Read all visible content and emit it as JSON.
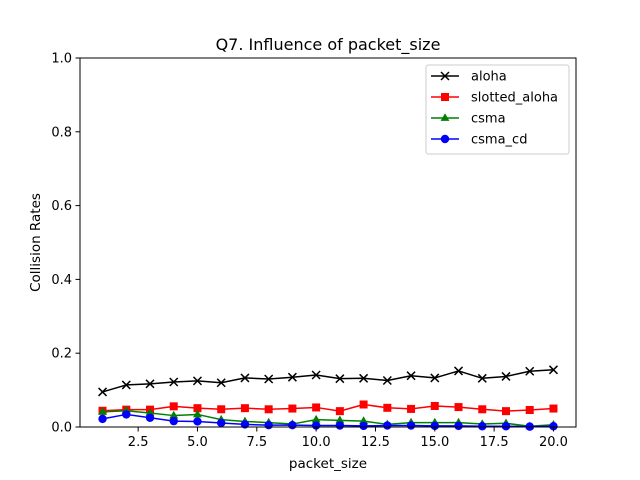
{
  "chart_data": {
    "type": "line",
    "title": "Q7. Influence of packet_size",
    "xlabel": "packet_size",
    "ylabel": "Collision Rates",
    "xlim": [
      0.05,
      20.95
    ],
    "ylim": [
      0.0,
      1.0
    ],
    "x_ticks": [
      2.5,
      5.0,
      7.5,
      10.0,
      12.5,
      15.0,
      17.5,
      20.0
    ],
    "x_tick_labels": [
      "2.5",
      "5.0",
      "7.5",
      "10.0",
      "12.5",
      "15.0",
      "17.5",
      "20.0"
    ],
    "y_ticks": [
      0.0,
      0.2,
      0.4,
      0.6,
      0.8,
      1.0
    ],
    "y_tick_labels": [
      "0.0",
      "0.2",
      "0.4",
      "0.6",
      "0.8",
      "1.0"
    ],
    "grid": false,
    "legend_position": "top-right",
    "x": [
      1,
      2,
      3,
      4,
      5,
      6,
      7,
      8,
      9,
      10,
      11,
      12,
      13,
      14,
      15,
      16,
      17,
      18,
      19,
      20
    ],
    "series": [
      {
        "name": "aloha",
        "color": "#000000",
        "marker": "x",
        "values": [
          0.095,
          0.114,
          0.117,
          0.122,
          0.125,
          0.12,
          0.133,
          0.13,
          0.135,
          0.141,
          0.131,
          0.132,
          0.126,
          0.139,
          0.133,
          0.152,
          0.132,
          0.137,
          0.151,
          0.155
        ]
      },
      {
        "name": "slotted_aloha",
        "color": "#ff0000",
        "marker": "square",
        "values": [
          0.044,
          0.047,
          0.047,
          0.056,
          0.051,
          0.048,
          0.051,
          0.048,
          0.05,
          0.053,
          0.043,
          0.061,
          0.052,
          0.049,
          0.057,
          0.054,
          0.048,
          0.043,
          0.046,
          0.05
        ]
      },
      {
        "name": "csma",
        "color": "#008000",
        "marker": "triangle",
        "values": [
          0.041,
          0.044,
          0.038,
          0.031,
          0.034,
          0.02,
          0.015,
          0.012,
          0.008,
          0.02,
          0.018,
          0.016,
          0.007,
          0.012,
          0.012,
          0.012,
          0.008,
          0.01,
          0.002,
          0.006
        ]
      },
      {
        "name": "csma_cd",
        "color": "#0000ff",
        "marker": "circle",
        "values": [
          0.022,
          0.034,
          0.025,
          0.016,
          0.015,
          0.011,
          0.007,
          0.005,
          0.005,
          0.004,
          0.004,
          0.003,
          0.004,
          0.004,
          0.003,
          0.003,
          0.002,
          0.002,
          0.001,
          0.002
        ]
      }
    ]
  }
}
